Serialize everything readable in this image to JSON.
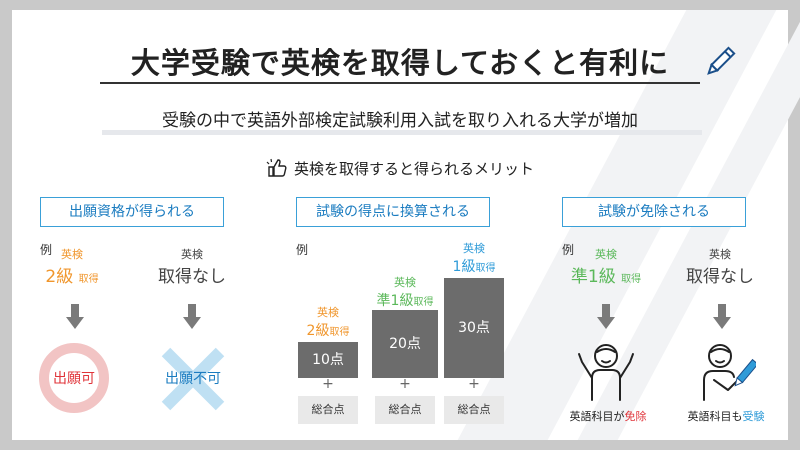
{
  "title": "大学受験で英検を取得しておくと有利に",
  "subtitle": "受験の中で英語外部検定試験利用入試を取り入れる大学が増加",
  "merit_heading": "英検を取得すると得られるメリット",
  "colors": {
    "orange": "#f0962c",
    "blue": "#2f9bd8",
    "green": "#5bb85a",
    "red": "#e0343a",
    "gray": "#6c6c6c"
  },
  "sections": [
    {
      "label": "出願資格が得られる",
      "example": "例",
      "left": {
        "l1": "英検",
        "grade": "2級",
        "suffix": "取得",
        "result": "出願可"
      },
      "right": {
        "l1": "英検",
        "l2": "取得なし",
        "result": "出願不可"
      }
    },
    {
      "label": "試験の得点に換算される",
      "example": "例",
      "bars": [
        {
          "l1": "英検",
          "grade": "2級",
          "suffix": "取得",
          "score": "10点",
          "total": "総合点",
          "plus": "+"
        },
        {
          "l1": "英検",
          "grade": "準1級",
          "suffix": "取得",
          "score": "20点",
          "total": "総合点",
          "plus": "+"
        },
        {
          "l1": "英検",
          "grade": "1級",
          "suffix": "取得",
          "score": "30点",
          "total": "総合点",
          "plus": "+"
        }
      ]
    },
    {
      "label": "試験が免除される",
      "example": "例",
      "left": {
        "l1": "英検",
        "grade": "準1級",
        "suffix": "取得",
        "caption_a": "英語科目が",
        "caption_b": "免除"
      },
      "right": {
        "l1": "英検",
        "l2": "取得なし",
        "caption_a": "英語科目も",
        "caption_b": "受験"
      }
    }
  ]
}
